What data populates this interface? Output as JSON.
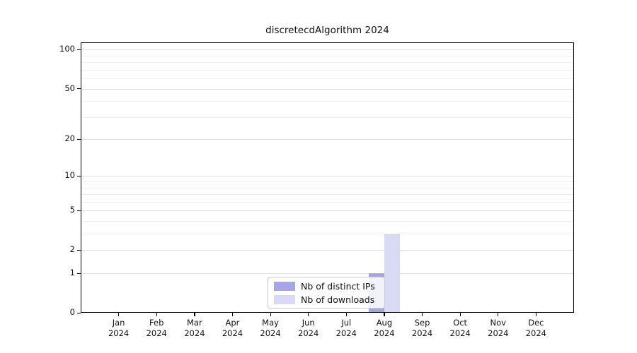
{
  "chart_data": {
    "type": "bar",
    "title": "discretecdAlgorithm 2024",
    "categories": [
      "Jan",
      "Feb",
      "Mar",
      "Apr",
      "May",
      "Jun",
      "Jul",
      "Aug",
      "Sep",
      "Oct",
      "Nov",
      "Dec"
    ],
    "x_tick_year_line": "2024",
    "series": [
      {
        "name": "Nb of distinct IPs",
        "color": "#a5a5e8",
        "values": [
          0,
          0,
          0,
          0,
          0,
          0,
          0,
          1,
          0,
          0,
          0,
          0
        ]
      },
      {
        "name": "Nb of downloads",
        "color": "#d9daf6",
        "values": [
          0,
          0,
          0,
          0,
          0,
          0,
          0,
          3,
          0,
          0,
          0,
          0
        ]
      }
    ],
    "yscale": "log(x+1)",
    "yticks": [
      0,
      1,
      2,
      5,
      10,
      20,
      50,
      100
    ],
    "minor_gridlines": [
      3,
      4,
      6,
      7,
      8,
      9,
      30,
      40,
      60,
      70,
      80,
      90
    ],
    "ylim": [
      0,
      114
    ],
    "xlabel": "",
    "ylabel": "",
    "grid": true,
    "legend_position": "bottom-center-inside"
  },
  "colors": {
    "background": "#ffffff",
    "major_grid": "#e0e0e0",
    "minor_grid": "#f1f1f1",
    "axis": "#000000",
    "text": "#111111",
    "legend_border": "#cccccc"
  }
}
